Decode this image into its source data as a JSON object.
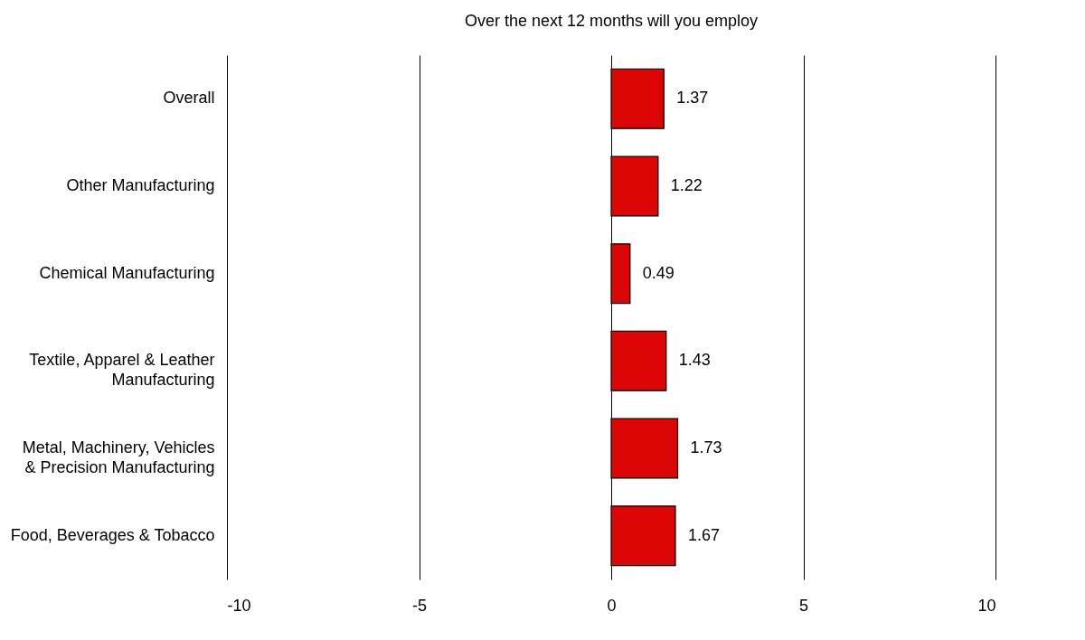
{
  "chart_data": {
    "type": "bar",
    "orientation": "horizontal",
    "title": "Over the next 12 months will you employ",
    "categories": [
      "Overall",
      "Other Manufacturing",
      "Chemical Manufacturing",
      "Textile, Apparel & Leather Manufacturing",
      "Metal, Machinery, Vehicles & Precision Manufacturing",
      "Food, Beverages & Tobacco"
    ],
    "values": [
      1.37,
      1.22,
      0.49,
      1.43,
      1.73,
      1.67
    ],
    "color": "#dd0606",
    "xlim": [
      -10,
      10
    ],
    "xticks": [
      -10,
      -5,
      0,
      5,
      10
    ],
    "grid": "x",
    "data_labels": true
  }
}
